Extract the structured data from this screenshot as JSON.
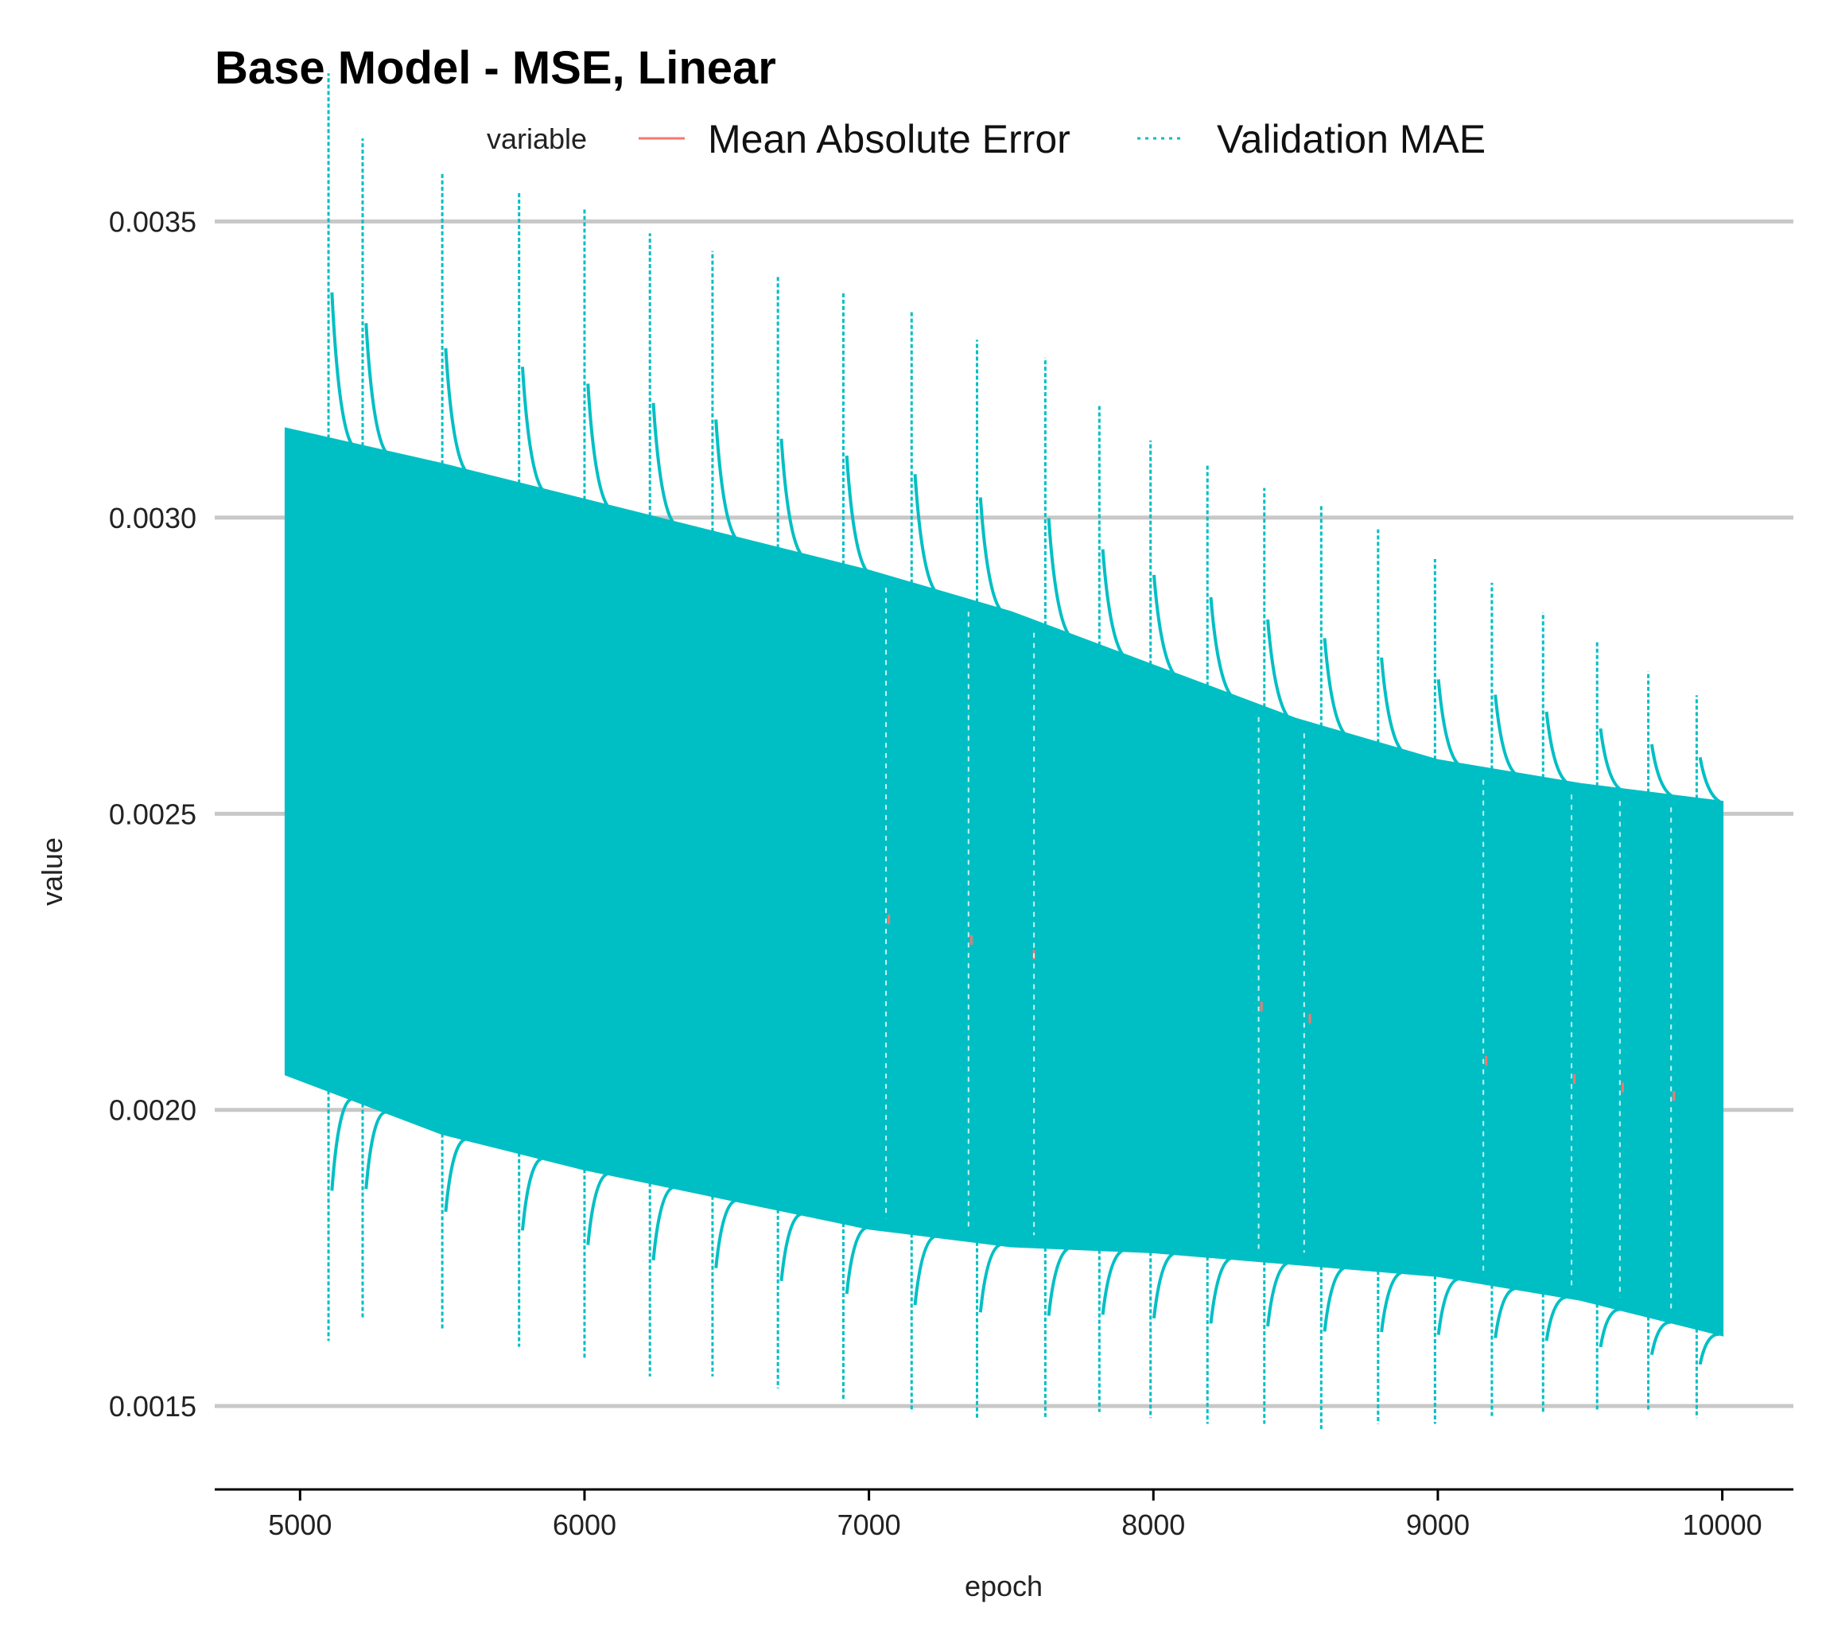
{
  "chart_data": {
    "type": "line",
    "title": "Base Model - MSE, Linear",
    "xlabel": "epoch",
    "ylabel": "value",
    "xlim": [
      4700,
      10250
    ],
    "ylim": [
      0.00137,
      0.0038
    ],
    "x_ticks": [
      5000,
      6000,
      7000,
      8000,
      9000,
      10000
    ],
    "x_tick_labels": [
      "5000",
      "6000",
      "7000",
      "8000",
      "9000",
      "10000"
    ],
    "y_ticks": [
      0.0015,
      0.002,
      0.0025,
      0.003,
      0.0035
    ],
    "y_tick_labels": [
      "0.0015",
      "0.0020",
      "0.0025",
      "0.0030",
      "0.0035"
    ],
    "grid": "horizontal major lines",
    "legend": {
      "position": "top",
      "title": "variable",
      "entries": [
        {
          "label": "Mean Absolute Error",
          "color": "#F8766D",
          "linetype": "solid"
        },
        {
          "label": "Validation MAE",
          "color": "#00BFC4",
          "linetype": "dotted"
        }
      ]
    },
    "series": [
      {
        "name": "Validation MAE",
        "color": "#00BFC4",
        "linetype": "dotted",
        "x": [
          4950,
          5500,
          6000,
          6500,
          7000,
          7500,
          8000,
          8500,
          9000,
          9500,
          10000
        ],
        "upper_envelope": [
          0.00315,
          0.00309,
          0.00303,
          0.00297,
          0.00291,
          0.00284,
          0.00275,
          0.00266,
          0.00259,
          0.00255,
          0.00252
        ],
        "lower_envelope": [
          0.00206,
          0.00196,
          0.0019,
          0.00185,
          0.0018,
          0.00177,
          0.00176,
          0.00174,
          0.00172,
          0.00168,
          0.00162
        ]
      },
      {
        "name": "Mean Absolute Error",
        "color": "#F8766D",
        "linetype": "solid",
        "x": [
          4950,
          5500,
          6000,
          6500,
          7000,
          7500,
          8000,
          8500,
          9000,
          9500,
          10000
        ],
        "values": [
          0.00255,
          0.00249,
          0.00243,
          0.00238,
          0.00233,
          0.00227,
          0.00222,
          0.00216,
          0.0021,
          0.00205,
          0.00201
        ]
      }
    ],
    "spikes": [
      {
        "x": 5100,
        "high": 0.00375,
        "low": 0.00161
      },
      {
        "x": 5220,
        "high": 0.00364,
        "low": 0.00165
      },
      {
        "x": 5500,
        "high": 0.00358,
        "low": 0.00163
      },
      {
        "x": 5770,
        "high": 0.00355,
        "low": 0.0016
      },
      {
        "x": 6000,
        "high": 0.00352,
        "low": 0.00158
      },
      {
        "x": 6230,
        "high": 0.00348,
        "low": 0.00155
      },
      {
        "x": 6450,
        "high": 0.00345,
        "low": 0.00155
      },
      {
        "x": 6680,
        "high": 0.00341,
        "low": 0.00153
      },
      {
        "x": 6910,
        "high": 0.00338,
        "low": 0.00151
      },
      {
        "x": 7150,
        "high": 0.00335,
        "low": 0.00149
      },
      {
        "x": 7380,
        "high": 0.0033,
        "low": 0.00148
      },
      {
        "x": 7620,
        "high": 0.00327,
        "low": 0.00148
      },
      {
        "x": 7810,
        "high": 0.00319,
        "low": 0.00149
      },
      {
        "x": 7990,
        "high": 0.00313,
        "low": 0.00148
      },
      {
        "x": 8190,
        "high": 0.00309,
        "low": 0.00147
      },
      {
        "x": 8390,
        "high": 0.00305,
        "low": 0.00147
      },
      {
        "x": 8590,
        "high": 0.00302,
        "low": 0.00146
      },
      {
        "x": 8790,
        "high": 0.00298,
        "low": 0.00147
      },
      {
        "x": 8990,
        "high": 0.00293,
        "low": 0.00147
      },
      {
        "x": 9190,
        "high": 0.00289,
        "low": 0.00148
      },
      {
        "x": 9370,
        "high": 0.00284,
        "low": 0.00149
      },
      {
        "x": 9560,
        "high": 0.00279,
        "low": 0.00149
      },
      {
        "x": 9740,
        "high": 0.00274,
        "low": 0.00149
      },
      {
        "x": 9910,
        "high": 0.0027,
        "low": 0.00148
      }
    ]
  }
}
